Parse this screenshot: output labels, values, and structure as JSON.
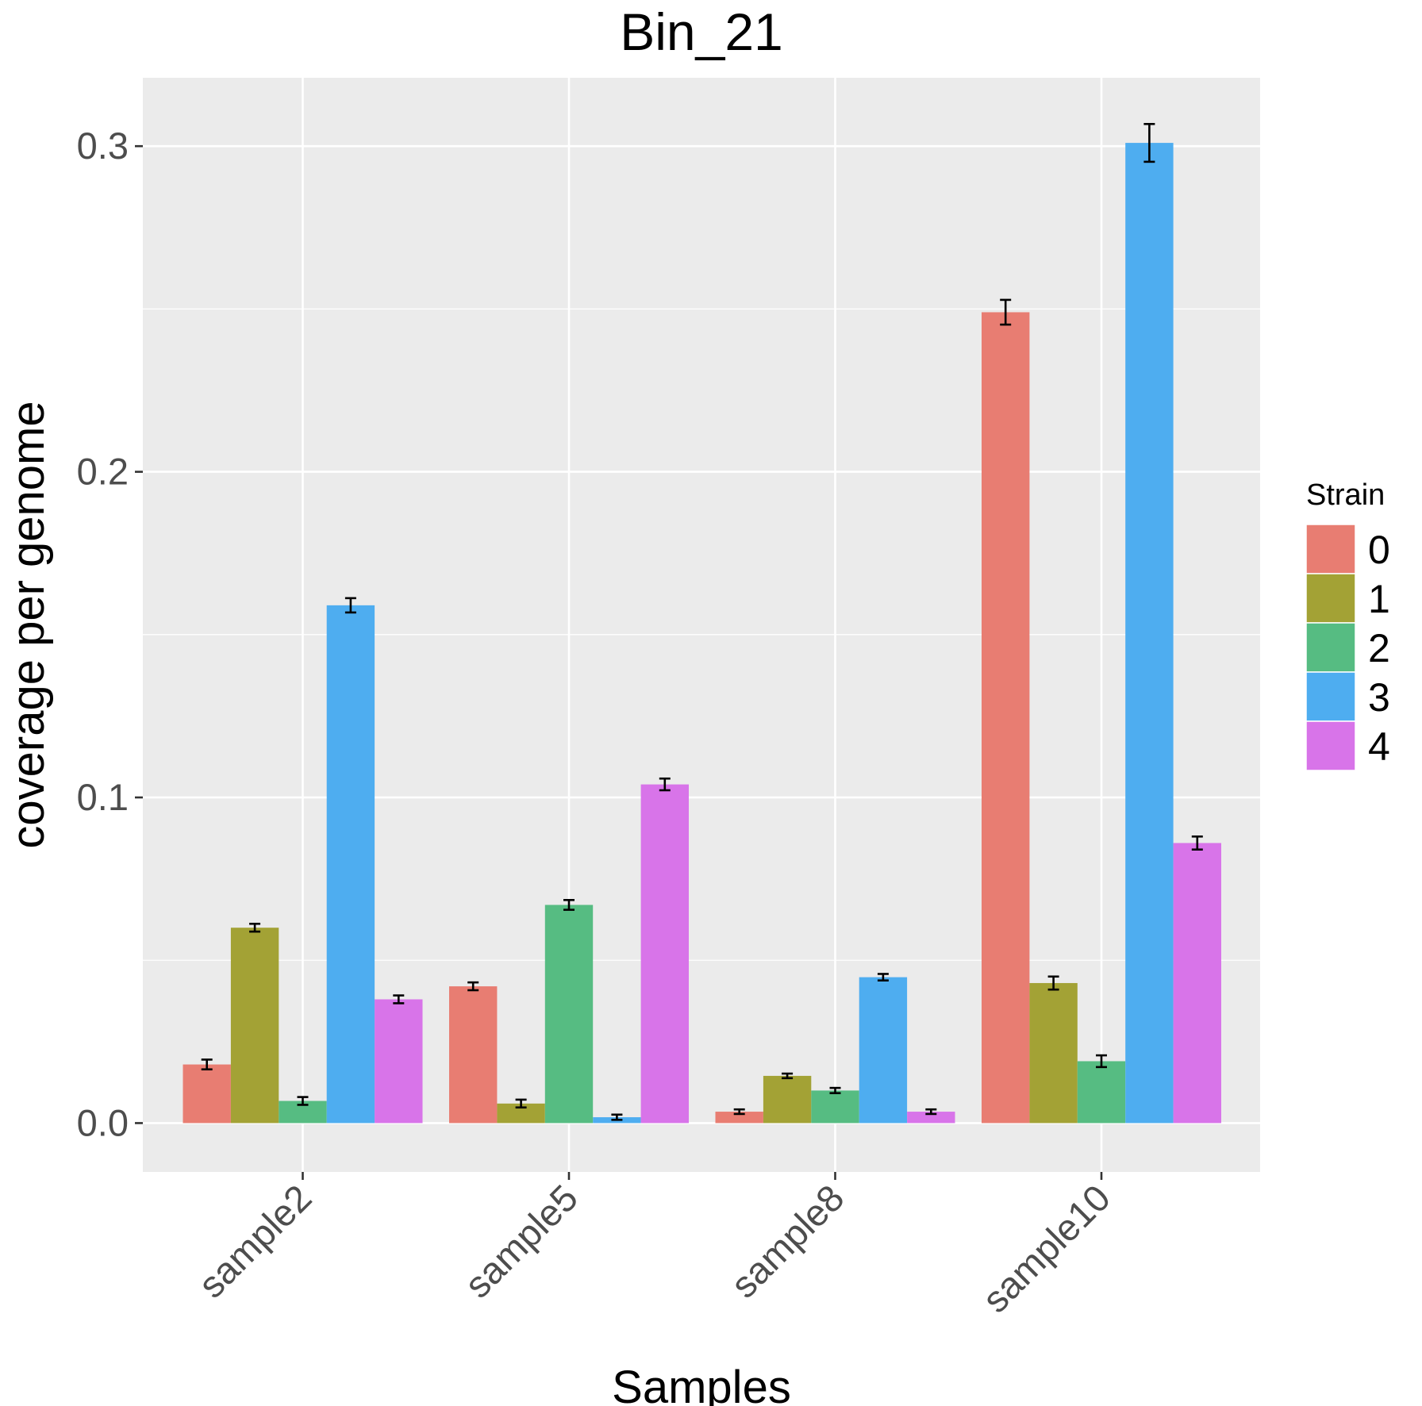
{
  "chart_data": {
    "type": "bar",
    "title": "Bin_21",
    "xlabel": "Samples",
    "ylabel": "coverage per genome",
    "categories": [
      "sample2",
      "sample5",
      "sample8",
      "sample10"
    ],
    "ylim": [
      -0.015,
      0.321
    ],
    "yticks": [
      0.0,
      0.1,
      0.2,
      0.3
    ],
    "ytick_labels": [
      "0.0",
      "0.1",
      "0.2",
      "0.3"
    ],
    "grid": true,
    "legend_title": "Strain",
    "legend_position": "right",
    "series": [
      {
        "name": "0",
        "color": "#E87D72",
        "values": [
          0.018,
          0.042,
          0.0035,
          0.249
        ],
        "errors": [
          0.0015,
          0.0012,
          0.0007,
          0.0038
        ]
      },
      {
        "name": "1",
        "color": "#A3A235",
        "values": [
          0.06,
          0.006,
          0.0145,
          0.043
        ],
        "errors": [
          0.0012,
          0.0012,
          0.0007,
          0.002
        ]
      },
      {
        "name": "2",
        "color": "#56BC82",
        "values": [
          0.0068,
          0.067,
          0.01,
          0.019
        ],
        "errors": [
          0.0012,
          0.0015,
          0.0008,
          0.0018
        ]
      },
      {
        "name": "3",
        "color": "#4EADF0",
        "values": [
          0.159,
          0.0018,
          0.0448,
          0.301
        ],
        "errors": [
          0.0022,
          0.0008,
          0.001,
          0.0058
        ]
      },
      {
        "name": "4",
        "color": "#D874E9",
        "values": [
          0.038,
          0.104,
          0.0035,
          0.086
        ],
        "errors": [
          0.0012,
          0.0018,
          0.0007,
          0.002
        ]
      }
    ]
  }
}
